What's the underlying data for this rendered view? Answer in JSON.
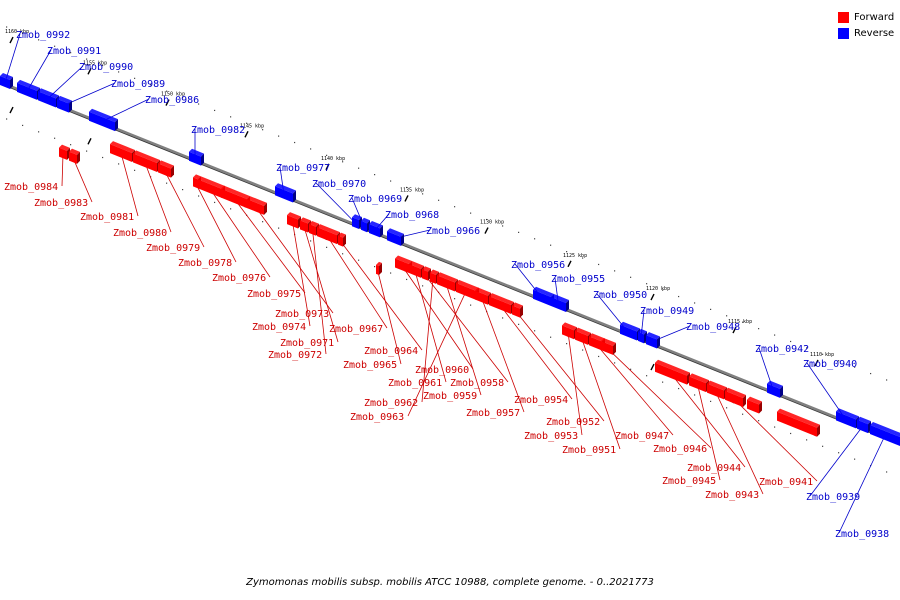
{
  "caption": "Zymomonas mobilis subsp. mobilis ATCC 10988, complete genome. - 0..2021773",
  "legend": [
    {
      "label": "Forward",
      "color": "#ff0000"
    },
    {
      "label": "Reverse",
      "color": "#0000ff"
    }
  ],
  "colors": {
    "forward": "#ff0000",
    "reverse": "#0000ff",
    "forward_label": "#cc0000",
    "reverse_label": "#0000cc",
    "axis": "#808080"
  },
  "ticks": [
    {
      "label": "1160 kbp"
    },
    {
      "label": "1155 kbp"
    },
    {
      "label": "1150 kbp"
    },
    {
      "label": "1145 kbp"
    },
    {
      "label": "1140 kbp"
    },
    {
      "label": "1135 kbp"
    },
    {
      "label": "1130 kbp"
    },
    {
      "label": "1125 kbp"
    },
    {
      "label": "1120 kbp"
    },
    {
      "label": "1115 kbp"
    },
    {
      "label": "1110 kbp"
    }
  ],
  "genes": [
    {
      "name": "Zmob_0992",
      "strand": "reverse"
    },
    {
      "name": "Zmob_0991",
      "strand": "reverse"
    },
    {
      "name": "Zmob_0990",
      "strand": "reverse"
    },
    {
      "name": "Zmob_0989",
      "strand": "reverse"
    },
    {
      "name": "Zmob_0986",
      "strand": "reverse"
    },
    {
      "name": "Zmob_0982",
      "strand": "reverse"
    },
    {
      "name": "Zmob_0977",
      "strand": "reverse"
    },
    {
      "name": "Zmob_0970",
      "strand": "reverse"
    },
    {
      "name": "Zmob_0969",
      "strand": "reverse"
    },
    {
      "name": "Zmob_0968",
      "strand": "reverse"
    },
    {
      "name": "Zmob_0966",
      "strand": "reverse"
    },
    {
      "name": "Zmob_0956",
      "strand": "reverse"
    },
    {
      "name": "Zmob_0955",
      "strand": "reverse"
    },
    {
      "name": "Zmob_0950",
      "strand": "reverse"
    },
    {
      "name": "Zmob_0949",
      "strand": "reverse"
    },
    {
      "name": "Zmob_0948",
      "strand": "reverse"
    },
    {
      "name": "Zmob_0942",
      "strand": "reverse"
    },
    {
      "name": "Zmob_0940",
      "strand": "reverse"
    },
    {
      "name": "Zmob_0939",
      "strand": "reverse"
    },
    {
      "name": "Zmob_0938",
      "strand": "reverse"
    },
    {
      "name": "Zmob_0984",
      "strand": "forward"
    },
    {
      "name": "Zmob_0983",
      "strand": "forward"
    },
    {
      "name": "Zmob_0981",
      "strand": "forward"
    },
    {
      "name": "Zmob_0980",
      "strand": "forward"
    },
    {
      "name": "Zmob_0979",
      "strand": "forward"
    },
    {
      "name": "Zmob_0978",
      "strand": "forward"
    },
    {
      "name": "Zmob_0976",
      "strand": "forward"
    },
    {
      "name": "Zmob_0975",
      "strand": "forward"
    },
    {
      "name": "Zmob_0973",
      "strand": "forward"
    },
    {
      "name": "Zmob_0974",
      "strand": "forward"
    },
    {
      "name": "Zmob_0971",
      "strand": "forward"
    },
    {
      "name": "Zmob_0972",
      "strand": "forward"
    },
    {
      "name": "Zmob_0967",
      "strand": "forward"
    },
    {
      "name": "Zmob_0964",
      "strand": "forward"
    },
    {
      "name": "Zmob_0965",
      "strand": "forward"
    },
    {
      "name": "Zmob_0960",
      "strand": "forward"
    },
    {
      "name": "Zmob_0961",
      "strand": "forward"
    },
    {
      "name": "Zmob_0958",
      "strand": "forward"
    },
    {
      "name": "Zmob_0962",
      "strand": "forward"
    },
    {
      "name": "Zmob_0959",
      "strand": "forward"
    },
    {
      "name": "Zmob_0963",
      "strand": "forward"
    },
    {
      "name": "Zmob_0957",
      "strand": "forward"
    },
    {
      "name": "Zmob_0954",
      "strand": "forward"
    },
    {
      "name": "Zmob_0952",
      "strand": "forward"
    },
    {
      "name": "Zmob_0953",
      "strand": "forward"
    },
    {
      "name": "Zmob_0951",
      "strand": "forward"
    },
    {
      "name": "Zmob_0947",
      "strand": "forward"
    },
    {
      "name": "Zmob_0946",
      "strand": "forward"
    },
    {
      "name": "Zmob_0944",
      "strand": "forward"
    },
    {
      "name": "Zmob_0945",
      "strand": "forward"
    },
    {
      "name": "Zmob_0943",
      "strand": "forward"
    },
    {
      "name": "Zmob_0941",
      "strand": "forward"
    }
  ]
}
